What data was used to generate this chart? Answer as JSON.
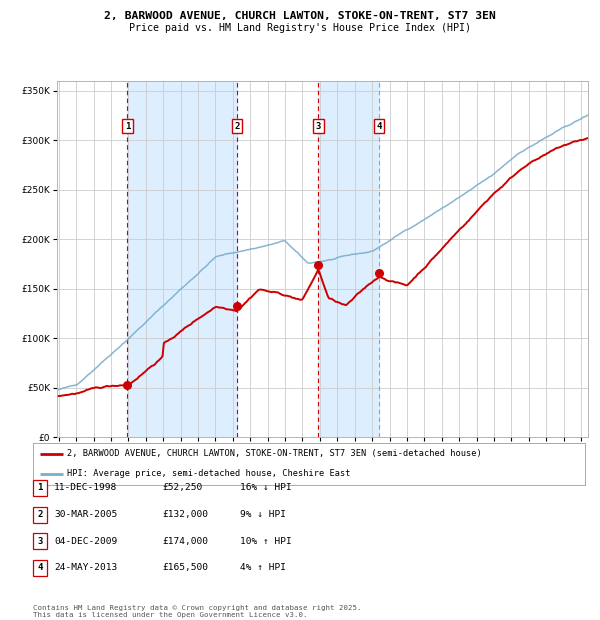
{
  "title_line1": "2, BARWOOD AVENUE, CHURCH LAWTON, STOKE-ON-TRENT, ST7 3EN",
  "title_line2": "Price paid vs. HM Land Registry's House Price Index (HPI)",
  "ylim": [
    0,
    360000
  ],
  "yticks": [
    0,
    50000,
    100000,
    150000,
    200000,
    250000,
    300000,
    350000
  ],
  "ytick_labels": [
    "£0",
    "£50K",
    "£100K",
    "£150K",
    "£200K",
    "£250K",
    "£300K",
    "£350K"
  ],
  "sale_prices": [
    52250,
    132000,
    174000,
    165500
  ],
  "sale_labels": [
    "1",
    "2",
    "3",
    "4"
  ],
  "sale_hpi_pct": [
    "16% ↓ HPI",
    "9% ↓ HPI",
    "10% ↑ HPI",
    "4% ↑ HPI"
  ],
  "sale_date_strs": [
    "11-DEC-1998",
    "30-MAR-2005",
    "04-DEC-2009",
    "24-MAY-2013"
  ],
  "sale_price_strs": [
    "£52,250",
    "£132,000",
    "£174,000",
    "£165,500"
  ],
  "sale_year_nums": [
    1998.94,
    2005.24,
    2009.92,
    2013.39
  ],
  "red_line_color": "#cc0000",
  "blue_line_color": "#7aadcc",
  "background_color": "#ffffff",
  "grid_color": "#cccccc",
  "shade_color": "#ddeeff",
  "legend_label_red": "2, BARWOOD AVENUE, CHURCH LAWTON, STOKE-ON-TRENT, ST7 3EN (semi-detached house)",
  "legend_label_blue": "HPI: Average price, semi-detached house, Cheshire East",
  "footer_text": "Contains HM Land Registry data © Crown copyright and database right 2025.\nThis data is licensed under the Open Government Licence v3.0.",
  "x_start_year": 1995,
  "x_end_year": 2025
}
